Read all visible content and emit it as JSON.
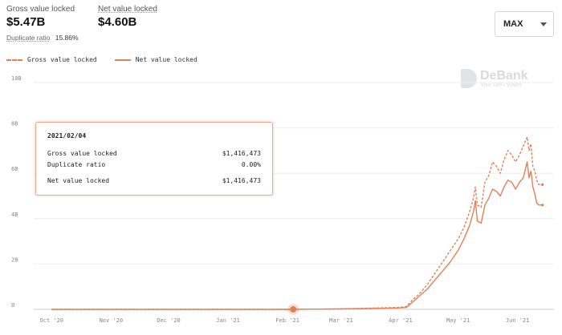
{
  "header": {
    "gross_label": "Gross value locked",
    "gross_value": "$5.47B",
    "net_label": "Net value locked",
    "net_value": "$4.60B",
    "dup_label": "Duplicate ratio",
    "dup_value": "15.86%"
  },
  "range_select": {
    "selected": "MAX"
  },
  "brand": {
    "name": "DeBank",
    "tagline": "Your DeFi Wallet"
  },
  "tooltip": {
    "date": "2021/02/04",
    "rows": [
      {
        "label": "Gross value locked",
        "value": "$1,416,473"
      },
      {
        "label": "Duplicate ratio",
        "value": "0.00%"
      },
      {
        "label": "Net value locked",
        "value": "$1,416,473"
      }
    ]
  },
  "chart_data": {
    "type": "line",
    "title": "",
    "xlabel": "",
    "ylabel": "",
    "legend_position": "top-left",
    "grid": true,
    "color": "#e0805a",
    "x_ticks": [
      {
        "label": "Oct '20",
        "t": 0
      },
      {
        "label": "Nov '20",
        "t": 31
      },
      {
        "label": "Dec '20",
        "t": 61
      },
      {
        "label": "Jan '21",
        "t": 92
      },
      {
        "label": "Feb '21",
        "t": 123
      },
      {
        "label": "Mar '21",
        "t": 151
      },
      {
        "label": "Apr '21",
        "t": 182
      },
      {
        "label": "May '21",
        "t": 212
      },
      {
        "label": "Jun '21",
        "t": 243
      }
    ],
    "y_ticks": [
      {
        "label": "0",
        "v": 0
      },
      {
        "label": "2B",
        "v": 2
      },
      {
        "label": "4B",
        "v": 4
      },
      {
        "label": "6B",
        "v": 6
      },
      {
        "label": "8B",
        "v": 8
      },
      {
        "label": "10B",
        "v": 10
      }
    ],
    "ylim": [
      0,
      10
    ],
    "xlim": [
      -6,
      262
    ],
    "highlight": {
      "t": 126,
      "v": 0.0014
    },
    "series": [
      {
        "name": "Gross value locked",
        "style": "dashed",
        "points": [
          [
            0,
            0
          ],
          [
            100,
            0
          ],
          [
            126,
            0.0014
          ],
          [
            150,
            0.02
          ],
          [
            165,
            0.05
          ],
          [
            180,
            0.08
          ],
          [
            185,
            0.12
          ],
          [
            188,
            0.4
          ],
          [
            192,
            0.7
          ],
          [
            196,
            1.1
          ],
          [
            200,
            1.6
          ],
          [
            204,
            2.1
          ],
          [
            208,
            2.6
          ],
          [
            212,
            3.1
          ],
          [
            215,
            3.6
          ],
          [
            218,
            4.3
          ],
          [
            220,
            4.9
          ],
          [
            221,
            5.4
          ],
          [
            222,
            4.6
          ],
          [
            224,
            4.5
          ],
          [
            226,
            5.6
          ],
          [
            228,
            5.9
          ],
          [
            230,
            6.5
          ],
          [
            232,
            6.3
          ],
          [
            234,
            6.0
          ],
          [
            236,
            6.6
          ],
          [
            238,
            7.0
          ],
          [
            240,
            6.8
          ],
          [
            242,
            6.5
          ],
          [
            244,
            6.8
          ],
          [
            246,
            7.2
          ],
          [
            248,
            7.6
          ],
          [
            249,
            7.0
          ],
          [
            250,
            7.3
          ],
          [
            251,
            6.3
          ],
          [
            252,
            6.1
          ],
          [
            253,
            5.7
          ],
          [
            254,
            5.5
          ],
          [
            256,
            5.5
          ]
        ]
      },
      {
        "name": "Net value locked",
        "style": "solid",
        "points": [
          [
            0,
            0
          ],
          [
            100,
            0
          ],
          [
            126,
            0.0014
          ],
          [
            150,
            0.02
          ],
          [
            165,
            0.04
          ],
          [
            180,
            0.06
          ],
          [
            185,
            0.08
          ],
          [
            188,
            0.3
          ],
          [
            192,
            0.6
          ],
          [
            196,
            0.9
          ],
          [
            200,
            1.3
          ],
          [
            204,
            1.7
          ],
          [
            208,
            2.1
          ],
          [
            212,
            2.6
          ],
          [
            215,
            3.1
          ],
          [
            218,
            3.7
          ],
          [
            220,
            4.3
          ],
          [
            221,
            4.8
          ],
          [
            222,
            3.9
          ],
          [
            224,
            3.8
          ],
          [
            226,
            4.6
          ],
          [
            228,
            4.9
          ],
          [
            230,
            5.3
          ],
          [
            232,
            5.2
          ],
          [
            234,
            5.0
          ],
          [
            236,
            5.4
          ],
          [
            238,
            5.7
          ],
          [
            240,
            5.6
          ],
          [
            242,
            5.3
          ],
          [
            244,
            5.6
          ],
          [
            246,
            5.8
          ],
          [
            248,
            6.5
          ],
          [
            249,
            5.8
          ],
          [
            250,
            6.1
          ],
          [
            251,
            5.4
          ],
          [
            252,
            5.1
          ],
          [
            253,
            4.7
          ],
          [
            254,
            4.6
          ],
          [
            256,
            4.6
          ]
        ]
      }
    ]
  }
}
